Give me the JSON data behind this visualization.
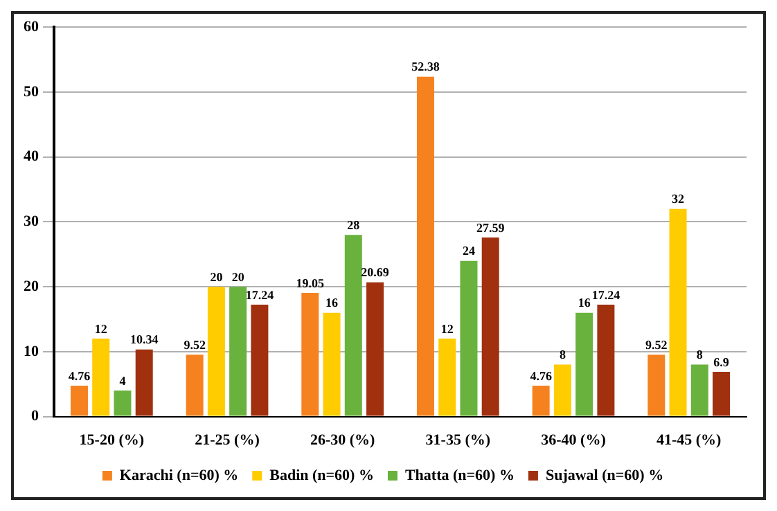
{
  "chart_data": {
    "type": "bar",
    "categories": [
      "15-20 (%)",
      "21-25 (%)",
      "26-30 (%)",
      "31-35 (%)",
      "36-40 (%)",
      "41-45 (%)"
    ],
    "series": [
      {
        "name": "Karachi (n=60) %",
        "color": "#f5821f",
        "values": [
          4.76,
          9.52,
          19.05,
          52.38,
          4.76,
          9.52
        ]
      },
      {
        "name": "Badin (n=60) %",
        "color": "#ffcc00",
        "values": [
          12,
          20,
          16,
          12,
          8,
          32
        ]
      },
      {
        "name": "Thatta (n=60) %",
        "color": "#6ab23e",
        "values": [
          4,
          20,
          28,
          24,
          16,
          8
        ]
      },
      {
        "name": "Sujawal (n=60) %",
        "color": "#a0300e",
        "values": [
          10.34,
          17.24,
          20.69,
          27.59,
          17.24,
          6.9
        ]
      }
    ],
    "ylim": [
      0,
      60
    ],
    "yticks": [
      0,
      10,
      20,
      30,
      40,
      50,
      60
    ],
    "grid": "y",
    "legend": "bottom",
    "data_labels": true
  }
}
